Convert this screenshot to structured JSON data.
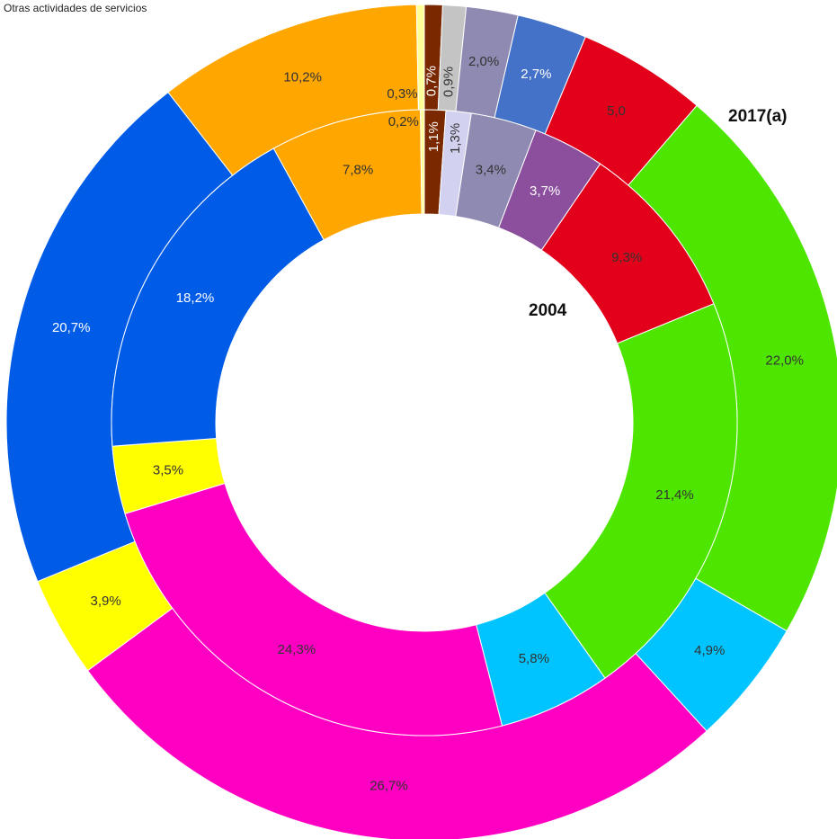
{
  "chart_data": {
    "type": "donut",
    "annotation": "Otras actividades de servicios",
    "series": [
      {
        "name": "2017(a)",
        "ring": "outer",
        "values": [
          0.7,
          0.9,
          2.0,
          2.7,
          5.0,
          22.0,
          4.9,
          26.7,
          3.9,
          20.7,
          10.2,
          0.3
        ],
        "value_labels": [
          "0,7%",
          "0,9%",
          "2,0%",
          "2,7%",
          "5,0",
          "22,0%",
          "4,9%",
          "26,7%",
          "3,9%",
          "20,7%",
          "10,2%",
          "0,3%"
        ],
        "colors": [
          "#7a2800",
          "#c4c4c4",
          "#8f8ab2",
          "#4472c8",
          "#e2001a",
          "#4ee600",
          "#00c4ff",
          "#ff00c3",
          "#ffff00",
          "#005ce6",
          "#ffa600",
          "#ffff99"
        ],
        "label_colors": [
          "#ffffff",
          "#333333",
          "#333333",
          "#ffffff",
          "#333333",
          "#333333",
          "#333333",
          "#333333",
          "#333333",
          "#ffffff",
          "#333333",
          "#333333"
        ]
      },
      {
        "name": "2004",
        "ring": "inner",
        "values": [
          1.1,
          1.3,
          3.4,
          3.7,
          9.3,
          21.4,
          5.8,
          24.3,
          3.5,
          18.2,
          7.8,
          0.2
        ],
        "value_labels": [
          "1,1%",
          "1,3%",
          "3,4%",
          "3,7%",
          "9,3%",
          "21,4%",
          "5,8%",
          "24,3%",
          "3,5%",
          "18,2%",
          "7,8%",
          "0,2%"
        ],
        "colors": [
          "#7a2800",
          "#d2d2f0",
          "#8f8ab2",
          "#8b4f9e",
          "#e2001a",
          "#4ee600",
          "#00c4ff",
          "#ff00c3",
          "#ffff00",
          "#005ce6",
          "#ffa600",
          "#ffff99"
        ],
        "label_colors": [
          "#ffffff",
          "#333333",
          "#333333",
          "#ffffff",
          "#333333",
          "#333333",
          "#333333",
          "#333333",
          "#333333",
          "#ffffff",
          "#333333",
          "#333333"
        ]
      }
    ]
  }
}
